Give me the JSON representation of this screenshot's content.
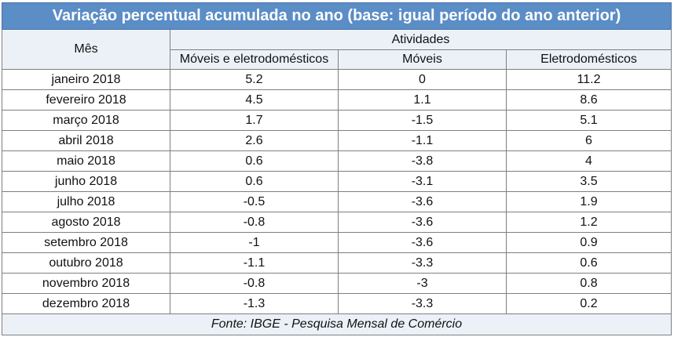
{
  "title": "Variação percentual  acumulada no ano (base: igual período do ano anterior)",
  "headers": {
    "month": "Mês",
    "group": "Atividades",
    "columns": [
      "Móveis e eletrodomésticos",
      "Móveis",
      "Eletrodomésticos"
    ]
  },
  "rows": [
    {
      "month": "janeiro 2018",
      "values": [
        "5.2",
        "0",
        "11.2"
      ]
    },
    {
      "month": "fevereiro 2018",
      "values": [
        "4.5",
        "1.1",
        "8.6"
      ]
    },
    {
      "month": "março 2018",
      "values": [
        "1.7",
        "-1.5",
        "5.1"
      ]
    },
    {
      "month": "abril 2018",
      "values": [
        "2.6",
        "-1.1",
        "6"
      ]
    },
    {
      "month": "maio 2018",
      "values": [
        "0.6",
        "-3.8",
        "4"
      ]
    },
    {
      "month": "junho 2018",
      "values": [
        "0.6",
        "-3.1",
        "3.5"
      ]
    },
    {
      "month": "julho 2018",
      "values": [
        "-0.5",
        "-3.6",
        "1.9"
      ]
    },
    {
      "month": "agosto 2018",
      "values": [
        "-0.8",
        "-3.6",
        "1.2"
      ]
    },
    {
      "month": "setembro 2018",
      "values": [
        "-1",
        "-3.6",
        "0.9"
      ]
    },
    {
      "month": "outubro 2018",
      "values": [
        "-1.1",
        "-3.3",
        "0.6"
      ]
    },
    {
      "month": "novembro 2018",
      "values": [
        "-0.8",
        "-3",
        "0.8"
      ]
    },
    {
      "month": "dezembro 2018",
      "values": [
        "-1.3",
        "-3.3",
        "0.2"
      ]
    }
  ],
  "footer": "Fonte: IBGE - Pesquisa Mensal de Comércio"
}
